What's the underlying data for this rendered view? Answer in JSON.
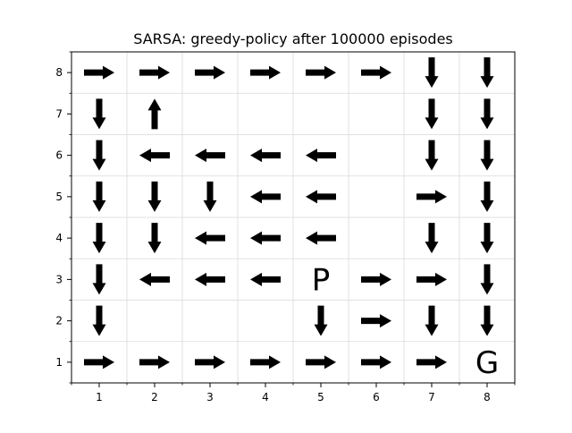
{
  "chart_data": {
    "type": "heatmap",
    "title": "SARSA: greedy-policy after 100000 episodes",
    "xlabel": "",
    "ylabel": "",
    "xlim": [
      0.5,
      8.5
    ],
    "ylim": [
      0.5,
      8.5
    ],
    "x_ticks": [
      1,
      2,
      3,
      4,
      5,
      6,
      7,
      8
    ],
    "y_ticks": [
      1,
      2,
      3,
      4,
      5,
      6,
      7,
      8
    ],
    "grid": true,
    "colors": {
      "arrow": "#000000",
      "grid": "#d9d9d9",
      "axis": "#000000",
      "background": "#ffffff"
    },
    "policy": [
      {
        "x": 1,
        "y": 8,
        "action": "right"
      },
      {
        "x": 2,
        "y": 8,
        "action": "right"
      },
      {
        "x": 3,
        "y": 8,
        "action": "right"
      },
      {
        "x": 4,
        "y": 8,
        "action": "right"
      },
      {
        "x": 5,
        "y": 8,
        "action": "right"
      },
      {
        "x": 6,
        "y": 8,
        "action": "right"
      },
      {
        "x": 7,
        "y": 8,
        "action": "down"
      },
      {
        "x": 8,
        "y": 8,
        "action": "down"
      },
      {
        "x": 1,
        "y": 7,
        "action": "down"
      },
      {
        "x": 2,
        "y": 7,
        "action": "up"
      },
      {
        "x": 7,
        "y": 7,
        "action": "down"
      },
      {
        "x": 8,
        "y": 7,
        "action": "down"
      },
      {
        "x": 1,
        "y": 6,
        "action": "down"
      },
      {
        "x": 2,
        "y": 6,
        "action": "left"
      },
      {
        "x": 3,
        "y": 6,
        "action": "left"
      },
      {
        "x": 4,
        "y": 6,
        "action": "left"
      },
      {
        "x": 5,
        "y": 6,
        "action": "left"
      },
      {
        "x": 7,
        "y": 6,
        "action": "down"
      },
      {
        "x": 8,
        "y": 6,
        "action": "down"
      },
      {
        "x": 1,
        "y": 5,
        "action": "down"
      },
      {
        "x": 2,
        "y": 5,
        "action": "down"
      },
      {
        "x": 3,
        "y": 5,
        "action": "down"
      },
      {
        "x": 4,
        "y": 5,
        "action": "left"
      },
      {
        "x": 5,
        "y": 5,
        "action": "left"
      },
      {
        "x": 7,
        "y": 5,
        "action": "right"
      },
      {
        "x": 8,
        "y": 5,
        "action": "down"
      },
      {
        "x": 1,
        "y": 4,
        "action": "down"
      },
      {
        "x": 2,
        "y": 4,
        "action": "down"
      },
      {
        "x": 3,
        "y": 4,
        "action": "left"
      },
      {
        "x": 4,
        "y": 4,
        "action": "left"
      },
      {
        "x": 5,
        "y": 4,
        "action": "left"
      },
      {
        "x": 7,
        "y": 4,
        "action": "down"
      },
      {
        "x": 8,
        "y": 4,
        "action": "down"
      },
      {
        "x": 1,
        "y": 3,
        "action": "down"
      },
      {
        "x": 2,
        "y": 3,
        "action": "left"
      },
      {
        "x": 3,
        "y": 3,
        "action": "left"
      },
      {
        "x": 4,
        "y": 3,
        "action": "left"
      },
      {
        "x": 6,
        "y": 3,
        "action": "right"
      },
      {
        "x": 7,
        "y": 3,
        "action": "right"
      },
      {
        "x": 8,
        "y": 3,
        "action": "down"
      },
      {
        "x": 1,
        "y": 2,
        "action": "down"
      },
      {
        "x": 5,
        "y": 2,
        "action": "down"
      },
      {
        "x": 6,
        "y": 2,
        "action": "right"
      },
      {
        "x": 7,
        "y": 2,
        "action": "down"
      },
      {
        "x": 8,
        "y": 2,
        "action": "down"
      },
      {
        "x": 1,
        "y": 1,
        "action": "right"
      },
      {
        "x": 2,
        "y": 1,
        "action": "right"
      },
      {
        "x": 3,
        "y": 1,
        "action": "right"
      },
      {
        "x": 4,
        "y": 1,
        "action": "right"
      },
      {
        "x": 5,
        "y": 1,
        "action": "right"
      },
      {
        "x": 6,
        "y": 1,
        "action": "right"
      },
      {
        "x": 7,
        "y": 1,
        "action": "right"
      }
    ],
    "cell_labels": [
      {
        "x": 5,
        "y": 3,
        "text": "P"
      },
      {
        "x": 8,
        "y": 1,
        "text": "G"
      }
    ]
  }
}
